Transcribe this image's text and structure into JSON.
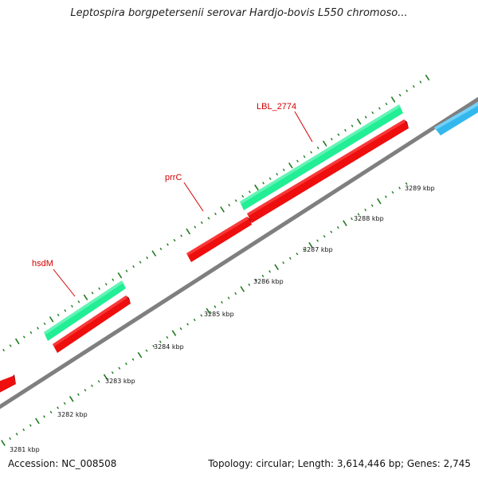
{
  "title": "Leptospira borgpetersenii serovar Hardjo-bovis L550 chromoso...",
  "footer": {
    "accession": "Accession: NC_008508",
    "summary": "Topology: circular; Length: 3,614,446 bp; Genes: 2,745"
  },
  "colors": {
    "backbone": "#7f7f7f",
    "gene_red": "#ee0e0e",
    "gene_green": "#22ee95",
    "gene_blue": "#33b8ee",
    "tick": "#1f7a1f",
    "label": "#d40000"
  },
  "ticks": [
    {
      "label": "3281 kbp"
    },
    {
      "label": "3282 kbp"
    },
    {
      "label": "3283 kbp"
    },
    {
      "label": "3284 kbp"
    },
    {
      "label": "3285 kbp"
    },
    {
      "label": "3286 kbp"
    },
    {
      "label": "3287 kbp"
    },
    {
      "label": "3288 kbp"
    },
    {
      "label": "3289 kbp"
    }
  ],
  "gene_labels": [
    {
      "name": "hsdM"
    },
    {
      "name": "prrC"
    },
    {
      "name": "LBL_2774"
    }
  ]
}
